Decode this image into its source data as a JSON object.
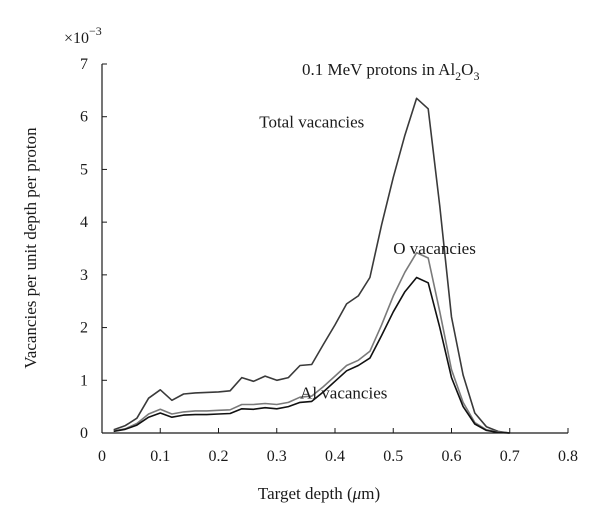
{
  "chart_data": {
    "type": "line",
    "title": "0.1 MeV protons in Al₂O₃",
    "title_parts": {
      "prefix": "0.1 MeV protons in Al",
      "sub1": "2",
      "mid": "O",
      "sub2": "3"
    },
    "xlabel": "Target depth (μm)",
    "xlabel_parts": {
      "prefix": "Target depth (",
      "mu": "μ",
      "suffix": "m)"
    },
    "ylabel": "Vacancies per unit depth per proton",
    "y_multiplier": "×10",
    "y_multiplier_exp": "−3",
    "xlim": [
      0,
      0.8
    ],
    "ylim": [
      0,
      7
    ],
    "x_ticks": [
      "0",
      "0.1",
      "0.2",
      "0.3",
      "0.4",
      "0.5",
      "0.6",
      "0.7",
      "0.8"
    ],
    "y_ticks": [
      "0",
      "1",
      "2",
      "3",
      "4",
      "5",
      "6",
      "7"
    ],
    "grid": false,
    "series": [
      {
        "name": "Total vacancies",
        "color": "#3a3a3a",
        "points": [
          [
            0.02,
            0.06
          ],
          [
            0.04,
            0.14
          ],
          [
            0.06,
            0.28
          ],
          [
            0.08,
            0.66
          ],
          [
            0.1,
            0.82
          ],
          [
            0.12,
            0.62
          ],
          [
            0.14,
            0.74
          ],
          [
            0.16,
            0.76
          ],
          [
            0.18,
            0.77
          ],
          [
            0.2,
            0.78
          ],
          [
            0.22,
            0.8
          ],
          [
            0.24,
            1.05
          ],
          [
            0.26,
            0.98
          ],
          [
            0.28,
            1.08
          ],
          [
            0.3,
            1.0
          ],
          [
            0.32,
            1.05
          ],
          [
            0.34,
            1.28
          ],
          [
            0.36,
            1.3
          ],
          [
            0.38,
            1.68
          ],
          [
            0.4,
            2.05
          ],
          [
            0.42,
            2.45
          ],
          [
            0.44,
            2.6
          ],
          [
            0.46,
            2.95
          ],
          [
            0.48,
            3.95
          ],
          [
            0.5,
            4.85
          ],
          [
            0.52,
            5.65
          ],
          [
            0.54,
            6.35
          ],
          [
            0.56,
            6.15
          ],
          [
            0.58,
            4.3
          ],
          [
            0.6,
            2.2
          ],
          [
            0.62,
            1.1
          ],
          [
            0.64,
            0.38
          ],
          [
            0.66,
            0.12
          ],
          [
            0.68,
            0.03
          ],
          [
            0.7,
            0.0
          ]
        ]
      },
      {
        "name": "O vacancies",
        "color": "#7a7a7a",
        "points": [
          [
            0.02,
            0.04
          ],
          [
            0.04,
            0.08
          ],
          [
            0.06,
            0.18
          ],
          [
            0.08,
            0.36
          ],
          [
            0.1,
            0.45
          ],
          [
            0.12,
            0.36
          ],
          [
            0.14,
            0.4
          ],
          [
            0.16,
            0.42
          ],
          [
            0.18,
            0.42
          ],
          [
            0.2,
            0.43
          ],
          [
            0.22,
            0.44
          ],
          [
            0.24,
            0.54
          ],
          [
            0.26,
            0.54
          ],
          [
            0.28,
            0.56
          ],
          [
            0.3,
            0.54
          ],
          [
            0.32,
            0.58
          ],
          [
            0.34,
            0.68
          ],
          [
            0.36,
            0.7
          ],
          [
            0.38,
            0.88
          ],
          [
            0.4,
            1.08
          ],
          [
            0.42,
            1.28
          ],
          [
            0.44,
            1.38
          ],
          [
            0.46,
            1.55
          ],
          [
            0.48,
            2.05
          ],
          [
            0.5,
            2.6
          ],
          [
            0.52,
            3.05
          ],
          [
            0.54,
            3.42
          ],
          [
            0.56,
            3.32
          ],
          [
            0.58,
            2.3
          ],
          [
            0.6,
            1.2
          ],
          [
            0.62,
            0.58
          ],
          [
            0.64,
            0.2
          ],
          [
            0.66,
            0.06
          ],
          [
            0.68,
            0.02
          ],
          [
            0.7,
            0.0
          ]
        ]
      },
      {
        "name": "Al vacancies",
        "color": "#111111",
        "points": [
          [
            0.02,
            0.03
          ],
          [
            0.04,
            0.07
          ],
          [
            0.06,
            0.15
          ],
          [
            0.08,
            0.3
          ],
          [
            0.1,
            0.38
          ],
          [
            0.12,
            0.3
          ],
          [
            0.14,
            0.34
          ],
          [
            0.16,
            0.35
          ],
          [
            0.18,
            0.35
          ],
          [
            0.2,
            0.36
          ],
          [
            0.22,
            0.37
          ],
          [
            0.24,
            0.46
          ],
          [
            0.26,
            0.45
          ],
          [
            0.28,
            0.48
          ],
          [
            0.3,
            0.46
          ],
          [
            0.32,
            0.5
          ],
          [
            0.34,
            0.58
          ],
          [
            0.36,
            0.6
          ],
          [
            0.38,
            0.78
          ],
          [
            0.4,
            0.98
          ],
          [
            0.42,
            1.18
          ],
          [
            0.44,
            1.28
          ],
          [
            0.46,
            1.42
          ],
          [
            0.48,
            1.85
          ],
          [
            0.5,
            2.3
          ],
          [
            0.52,
            2.68
          ],
          [
            0.54,
            2.95
          ],
          [
            0.56,
            2.85
          ],
          [
            0.58,
            2.0
          ],
          [
            0.6,
            1.05
          ],
          [
            0.62,
            0.5
          ],
          [
            0.64,
            0.17
          ],
          [
            0.66,
            0.05
          ],
          [
            0.68,
            0.01
          ],
          [
            0.7,
            0.0
          ]
        ]
      }
    ],
    "annotations": [
      {
        "text": "Total vacancies",
        "x": 0.27,
        "y": 5.8
      },
      {
        "text": "O vacancies",
        "x": 0.5,
        "y": 3.4
      },
      {
        "text": "Al vacancies",
        "x": 0.34,
        "y": 0.65
      }
    ]
  }
}
